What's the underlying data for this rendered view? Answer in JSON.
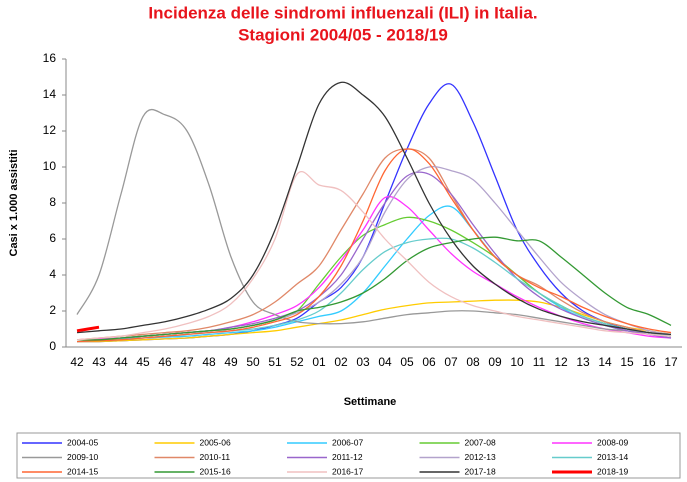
{
  "chart_data": {
    "type": "line",
    "title": "Incidenza delle sindromi influenzali (ILI) in Italia.",
    "subtitle": "Stagioni 2004/05 - 2018/19",
    "ylabel": "Casi x 1.000 assistiti",
    "xlabel": "Settimane",
    "categories": [
      "42",
      "43",
      "44",
      "45",
      "46",
      "47",
      "48",
      "49",
      "50",
      "51",
      "52",
      "01",
      "02",
      "03",
      "04",
      "05",
      "06",
      "07",
      "08",
      "09",
      "10",
      "11",
      "12",
      "13",
      "14",
      "15",
      "16",
      "17"
    ],
    "ylim": [
      0,
      16
    ],
    "yticks": [
      0,
      2,
      4,
      6,
      8,
      10,
      12,
      14,
      16
    ],
    "grid": false,
    "legend": "bottom",
    "series": [
      {
        "name": "2004-05",
        "color": "#3333ff",
        "values": [
          0.3,
          0.3,
          0.35,
          0.4,
          0.45,
          0.5,
          0.6,
          0.7,
          0.9,
          1.2,
          1.6,
          2.5,
          3.3,
          5.0,
          8.0,
          11.0,
          13.5,
          14.6,
          12.5,
          9.5,
          6.5,
          4.5,
          3.0,
          2.0,
          1.4,
          1.0,
          0.8,
          0.6
        ]
      },
      {
        "name": "2005-06",
        "color": "#ffcc00",
        "values": [
          0.3,
          0.3,
          0.35,
          0.4,
          0.45,
          0.5,
          0.6,
          0.7,
          0.8,
          0.9,
          1.1,
          1.3,
          1.5,
          1.8,
          2.1,
          2.3,
          2.45,
          2.5,
          2.55,
          2.6,
          2.6,
          2.5,
          2.2,
          1.8,
          1.4,
          1.1,
          0.9,
          0.7
        ]
      },
      {
        "name": "2006-07",
        "color": "#33ccff",
        "values": [
          0.4,
          0.4,
          0.45,
          0.5,
          0.55,
          0.6,
          0.7,
          0.8,
          0.9,
          1.1,
          1.4,
          1.7,
          2.0,
          3.0,
          4.5,
          6.0,
          7.3,
          7.8,
          6.5,
          5.0,
          4.0,
          3.0,
          2.2,
          1.6,
          1.2,
          0.9,
          0.7,
          0.5
        ]
      },
      {
        "name": "2007-08",
        "color": "#66cc33",
        "values": [
          0.4,
          0.4,
          0.5,
          0.6,
          0.7,
          0.8,
          0.9,
          1.0,
          1.2,
          1.5,
          2.0,
          3.5,
          5.0,
          6.2,
          6.8,
          7.2,
          7.0,
          6.5,
          5.8,
          5.0,
          4.0,
          3.0,
          2.3,
          1.7,
          1.3,
          1.0,
          0.8,
          0.6
        ]
      },
      {
        "name": "2008-09",
        "color": "#ff33ff",
        "values": [
          0.4,
          0.45,
          0.5,
          0.6,
          0.7,
          0.8,
          0.9,
          1.1,
          1.4,
          1.8,
          2.3,
          3.3,
          4.8,
          6.5,
          8.3,
          7.8,
          6.5,
          5.2,
          4.2,
          3.5,
          2.8,
          2.2,
          1.7,
          1.3,
          1.0,
          0.8,
          0.6,
          0.5
        ]
      },
      {
        "name": "2009-10",
        "color": "#999999",
        "values": [
          1.8,
          4.0,
          8.5,
          12.8,
          12.9,
          12.0,
          9.0,
          5.0,
          2.5,
          1.8,
          1.4,
          1.3,
          1.3,
          1.4,
          1.6,
          1.8,
          1.9,
          2.0,
          2.0,
          1.9,
          1.8,
          1.6,
          1.4,
          1.2,
          1.0,
          0.9,
          0.8,
          0.7
        ]
      },
      {
        "name": "2010-11",
        "color": "#e08868",
        "values": [
          0.4,
          0.5,
          0.6,
          0.7,
          0.8,
          0.9,
          1.1,
          1.4,
          1.8,
          2.5,
          3.5,
          4.5,
          6.5,
          8.5,
          10.5,
          11.0,
          10.5,
          8.5,
          6.5,
          5.0,
          4.0,
          3.4,
          2.6,
          1.9,
          1.4,
          1.1,
          0.8,
          0.6
        ]
      },
      {
        "name": "2011-12",
        "color": "#9966cc",
        "values": [
          0.4,
          0.4,
          0.5,
          0.6,
          0.7,
          0.8,
          0.9,
          1.1,
          1.3,
          1.6,
          2.0,
          2.8,
          4.0,
          6.0,
          8.0,
          9.5,
          9.6,
          8.5,
          6.8,
          5.2,
          3.8,
          2.8,
          2.1,
          1.6,
          1.2,
          0.9,
          0.7,
          0.5
        ]
      },
      {
        "name": "2012-13",
        "color": "#b3a3cc",
        "values": [
          0.4,
          0.4,
          0.5,
          0.6,
          0.7,
          0.8,
          0.9,
          1.0,
          1.2,
          1.5,
          1.9,
          2.5,
          3.5,
          5.0,
          7.5,
          9.3,
          10.0,
          9.8,
          9.3,
          8.0,
          6.5,
          5.0,
          3.6,
          2.6,
          1.8,
          1.3,
          0.9,
          0.7
        ]
      },
      {
        "name": "2013-14",
        "color": "#66cccc",
        "values": [
          0.3,
          0.35,
          0.4,
          0.5,
          0.6,
          0.7,
          0.8,
          0.9,
          1.0,
          1.2,
          1.5,
          2.0,
          3.0,
          4.3,
          5.3,
          5.8,
          6.0,
          6.0,
          5.5,
          4.7,
          3.8,
          3.0,
          2.3,
          1.7,
          1.3,
          1.0,
          0.8,
          0.6
        ]
      },
      {
        "name": "2014-15",
        "color": "#ff6633",
        "values": [
          0.3,
          0.35,
          0.4,
          0.5,
          0.6,
          0.7,
          0.8,
          0.9,
          1.1,
          1.4,
          1.8,
          2.8,
          4.5,
          7.0,
          9.8,
          11.0,
          10.2,
          8.3,
          6.5,
          5.0,
          4.0,
          3.3,
          2.8,
          2.2,
          1.7,
          1.3,
          1.0,
          0.8
        ]
      },
      {
        "name": "2015-16",
        "color": "#339933",
        "values": [
          0.4,
          0.4,
          0.5,
          0.6,
          0.7,
          0.8,
          0.9,
          1.0,
          1.2,
          1.5,
          2.0,
          2.2,
          2.5,
          3.0,
          3.8,
          4.8,
          5.5,
          5.8,
          6.0,
          6.1,
          5.9,
          5.9,
          5.0,
          4.0,
          3.0,
          2.2,
          1.8,
          1.2
        ]
      },
      {
        "name": "2016-17",
        "color": "#f0c0c0",
        "values": [
          0.4,
          0.5,
          0.6,
          0.8,
          1.0,
          1.3,
          1.7,
          2.4,
          3.8,
          6.0,
          9.6,
          9.0,
          8.7,
          7.5,
          6.0,
          4.8,
          3.6,
          2.8,
          2.3,
          2.0,
          1.7,
          1.5,
          1.3,
          1.1,
          0.9,
          0.8,
          0.7,
          0.6
        ]
      },
      {
        "name": "2017-18",
        "color": "#333333",
        "values": [
          0.8,
          0.9,
          1.0,
          1.2,
          1.4,
          1.7,
          2.1,
          2.7,
          4.0,
          6.5,
          10.0,
          13.5,
          14.7,
          14.0,
          12.8,
          10.5,
          8.0,
          6.0,
          4.5,
          3.5,
          2.7,
          2.1,
          1.7,
          1.4,
          1.2,
          1.0,
          0.8,
          0.7
        ]
      },
      {
        "name": "2018-19",
        "color": "#ff0000",
        "values": [
          0.9,
          1.1,
          null,
          null,
          null,
          null,
          null,
          null,
          null,
          null,
          null,
          null,
          null,
          null,
          null,
          null,
          null,
          null,
          null,
          null,
          null,
          null,
          null,
          null,
          null,
          null,
          null,
          null
        ]
      }
    ]
  }
}
